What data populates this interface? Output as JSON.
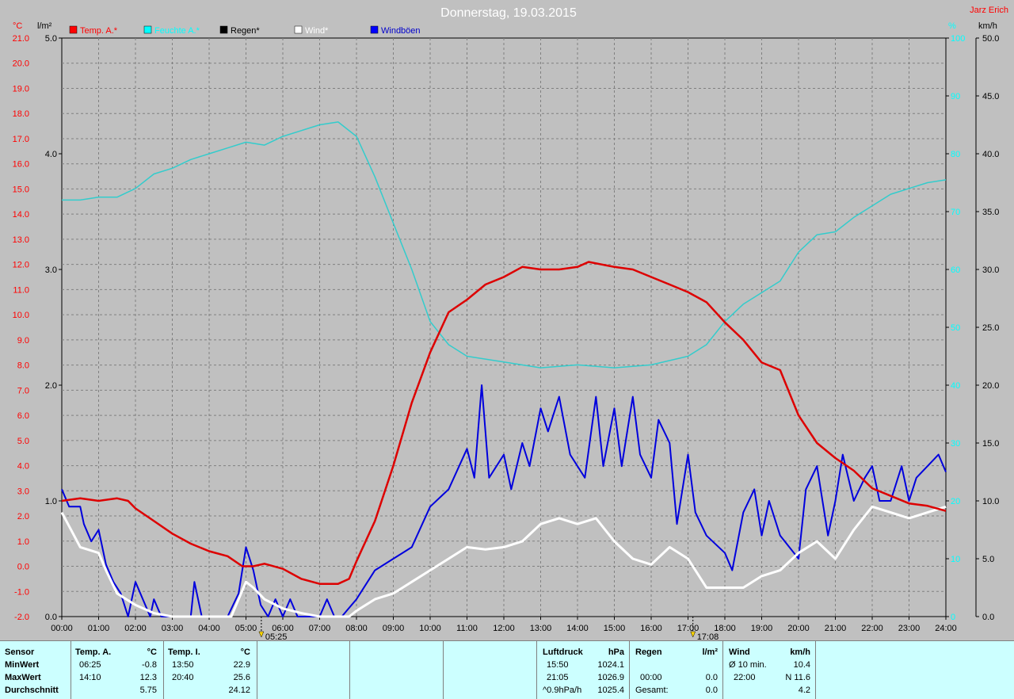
{
  "header": {
    "title": "Donnerstag, 19.03.2015",
    "owner": "Jarz Erich"
  },
  "axes": {
    "left_temp_unit": "°C",
    "left_rain_unit": "l/m²",
    "right_hum_unit": "%",
    "right_wind_unit": "km/h",
    "temp_ticks": [
      "21.0",
      "20.0",
      "19.0",
      "18.0",
      "17.0",
      "16.0",
      "15.0",
      "14.0",
      "13.0",
      "12.0",
      "11.0",
      "10.0",
      "9.0",
      "8.0",
      "7.0",
      "6.0",
      "5.0",
      "4.0",
      "3.0",
      "2.0",
      "1.0",
      "0.0",
      "-1.0",
      "-2.0"
    ],
    "rain_ticks": [
      "5.0",
      "4.0",
      "3.0",
      "2.0",
      "1.0",
      "0.0"
    ],
    "hum_ticks": [
      "100",
      "90",
      "80",
      "70",
      "60",
      "50",
      "40",
      "30",
      "20",
      "10",
      "0"
    ],
    "wind_ticks": [
      "50.0",
      "45.0",
      "40.0",
      "35.0",
      "30.0",
      "25.0",
      "20.0",
      "15.0",
      "10.0",
      "5.0",
      "0.0"
    ],
    "time_ticks": [
      "00:00",
      "01:00",
      "02:00",
      "03:00",
      "04:00",
      "05:00",
      "06:00",
      "07:00",
      "08:00",
      "09:00",
      "10:00",
      "11:00",
      "12:00",
      "13:00",
      "14:00",
      "15:00",
      "16:00",
      "17:00",
      "18:00",
      "19:00",
      "20:00",
      "21:00",
      "22:00",
      "23:00",
      "24:00"
    ],
    "sunrise": "05:25",
    "sunset": "17:08"
  },
  "legend": [
    {
      "label": "Temp. A.*",
      "color": "#ff0000"
    },
    {
      "label": "Feuchte A.*",
      "color": "#00ffff"
    },
    {
      "label": "Regen*",
      "color": "#000000"
    },
    {
      "label": "Wind*",
      "color": "#ffffff"
    },
    {
      "label": "Windböen",
      "color": "#0000ff"
    }
  ],
  "colors": {
    "temp": "#dd0000",
    "hum": "#33cccc",
    "wind": "#ffffff",
    "gust": "#0000dd",
    "temp_axis": "#ff0000",
    "hum_axis": "#00ffff",
    "grid": "#808080"
  },
  "chart_data": {
    "type": "line",
    "title": "Donnerstag, 19.03.2015",
    "x_unit": "hours",
    "xlim": [
      0,
      24
    ],
    "ylim_temp": [
      -2,
      21
    ],
    "ylim_rain": [
      0,
      5
    ],
    "ylim_hum": [
      0,
      100
    ],
    "ylim_wind": [
      0,
      50
    ],
    "series": [
      {
        "name": "Temp. A.*",
        "axis": "temp",
        "points": [
          [
            0,
            2.6
          ],
          [
            0.5,
            2.7
          ],
          [
            1,
            2.6
          ],
          [
            1.5,
            2.7
          ],
          [
            1.8,
            2.6
          ],
          [
            2,
            2.3
          ],
          [
            2.5,
            1.8
          ],
          [
            3,
            1.3
          ],
          [
            3.5,
            0.9
          ],
          [
            4,
            0.6
          ],
          [
            4.5,
            0.4
          ],
          [
            4.9,
            0.0
          ],
          [
            5.2,
            0.0
          ],
          [
            5.5,
            0.1
          ],
          [
            6,
            -0.1
          ],
          [
            6.5,
            -0.5
          ],
          [
            7,
            -0.7
          ],
          [
            7.5,
            -0.7
          ],
          [
            7.8,
            -0.5
          ],
          [
            8,
            0.2
          ],
          [
            8.5,
            1.8
          ],
          [
            9,
            4.0
          ],
          [
            9.5,
            6.5
          ],
          [
            10,
            8.5
          ],
          [
            10.5,
            10.1
          ],
          [
            11,
            10.6
          ],
          [
            11.5,
            11.2
          ],
          [
            12,
            11.5
          ],
          [
            12.5,
            11.9
          ],
          [
            13,
            11.8
          ],
          [
            13.5,
            11.8
          ],
          [
            14,
            11.9
          ],
          [
            14.3,
            12.1
          ],
          [
            15,
            11.9
          ],
          [
            15.5,
            11.8
          ],
          [
            16,
            11.5
          ],
          [
            16.5,
            11.2
          ],
          [
            17,
            10.9
          ],
          [
            17.5,
            10.5
          ],
          [
            18,
            9.7
          ],
          [
            18.5,
            9.0
          ],
          [
            19,
            8.1
          ],
          [
            19.5,
            7.8
          ],
          [
            20,
            6.0
          ],
          [
            20.5,
            4.9
          ],
          [
            21,
            4.3
          ],
          [
            21.5,
            3.8
          ],
          [
            22,
            3.1
          ],
          [
            22.5,
            2.8
          ],
          [
            23,
            2.5
          ],
          [
            23.5,
            2.4
          ],
          [
            24,
            2.2
          ]
        ]
      },
      {
        "name": "Feuchte A.*",
        "axis": "hum",
        "points": [
          [
            0,
            72
          ],
          [
            0.5,
            72
          ],
          [
            1,
            72.5
          ],
          [
            1.5,
            72.5
          ],
          [
            2,
            74
          ],
          [
            2.5,
            76.5
          ],
          [
            3,
            77.5
          ],
          [
            3.5,
            79
          ],
          [
            4,
            80
          ],
          [
            4.5,
            81
          ],
          [
            5,
            82
          ],
          [
            5.5,
            81.5
          ],
          [
            6,
            83
          ],
          [
            6.5,
            84
          ],
          [
            7,
            85
          ],
          [
            7.5,
            85.5
          ],
          [
            8,
            83
          ],
          [
            8.5,
            76
          ],
          [
            9,
            68
          ],
          [
            9.5,
            60
          ],
          [
            10,
            51
          ],
          [
            10.5,
            47
          ],
          [
            11,
            45
          ],
          [
            12,
            44
          ],
          [
            13,
            43
          ],
          [
            14,
            43.5
          ],
          [
            15,
            43
          ],
          [
            16,
            43.5
          ],
          [
            17,
            45
          ],
          [
            17.5,
            47
          ],
          [
            18,
            51
          ],
          [
            18.5,
            54
          ],
          [
            19,
            56
          ],
          [
            19.5,
            58
          ],
          [
            20,
            63
          ],
          [
            20.5,
            66
          ],
          [
            21,
            66.5
          ],
          [
            21.5,
            69
          ],
          [
            22,
            71
          ],
          [
            22.5,
            73
          ],
          [
            23,
            74
          ],
          [
            23.5,
            75
          ],
          [
            24,
            75.5
          ]
        ]
      },
      {
        "name": "Wind*",
        "axis": "wind",
        "points": [
          [
            0,
            9
          ],
          [
            0.5,
            6
          ],
          [
            1,
            5.5
          ],
          [
            1.2,
            4
          ],
          [
            1.5,
            2
          ],
          [
            2,
            1
          ],
          [
            2.5,
            0.3
          ],
          [
            3,
            0
          ],
          [
            4,
            0
          ],
          [
            4.6,
            0
          ],
          [
            5,
            3
          ],
          [
            5.2,
            2.5
          ],
          [
            5.5,
            1.5
          ],
          [
            6,
            0.7
          ],
          [
            6.5,
            0.3
          ],
          [
            7,
            0
          ],
          [
            7.8,
            0
          ],
          [
            8,
            0.5
          ],
          [
            8.5,
            1.5
          ],
          [
            9,
            2
          ],
          [
            9.5,
            3
          ],
          [
            10,
            4
          ],
          [
            10.5,
            5
          ],
          [
            11,
            6
          ],
          [
            11.5,
            5.8
          ],
          [
            12,
            6
          ],
          [
            12.5,
            6.5
          ],
          [
            13,
            8
          ],
          [
            13.5,
            8.5
          ],
          [
            14,
            8
          ],
          [
            14.5,
            8.5
          ],
          [
            15,
            6.5
          ],
          [
            15.5,
            5
          ],
          [
            16,
            4.5
          ],
          [
            16.5,
            6
          ],
          [
            17,
            5
          ],
          [
            17.5,
            2.5
          ],
          [
            18,
            2.5
          ],
          [
            18.5,
            2.5
          ],
          [
            19,
            3.5
          ],
          [
            19.5,
            4
          ],
          [
            20,
            5.5
          ],
          [
            20.5,
            6.5
          ],
          [
            21,
            5
          ],
          [
            21.5,
            7.5
          ],
          [
            22,
            9.5
          ],
          [
            22.5,
            9
          ],
          [
            23,
            8.5
          ],
          [
            23.5,
            9
          ],
          [
            24,
            9.5
          ]
        ]
      },
      {
        "name": "Windböen",
        "axis": "wind",
        "points": [
          [
            0,
            11
          ],
          [
            0.2,
            9.5
          ],
          [
            0.5,
            9.5
          ],
          [
            0.6,
            8
          ],
          [
            0.8,
            6.5
          ],
          [
            1,
            7.5
          ],
          [
            1.2,
            4.5
          ],
          [
            1.4,
            3
          ],
          [
            1.6,
            2
          ],
          [
            1.8,
            0
          ],
          [
            2,
            3
          ],
          [
            2.2,
            1.5
          ],
          [
            2.4,
            0
          ],
          [
            2.5,
            1.5
          ],
          [
            2.7,
            0
          ],
          [
            3,
            0
          ],
          [
            3.5,
            0
          ],
          [
            3.6,
            3
          ],
          [
            3.8,
            0
          ],
          [
            4,
            0
          ],
          [
            4.5,
            0
          ],
          [
            4.8,
            2
          ],
          [
            5,
            6
          ],
          [
            5.2,
            4
          ],
          [
            5.4,
            1
          ],
          [
            5.6,
            0
          ],
          [
            5.8,
            1.5
          ],
          [
            6,
            0
          ],
          [
            6.2,
            1.5
          ],
          [
            6.4,
            0
          ],
          [
            7,
            0
          ],
          [
            7.2,
            1.5
          ],
          [
            7.4,
            0
          ],
          [
            7.6,
            0
          ],
          [
            8,
            1.5
          ],
          [
            8.5,
            4
          ],
          [
            9,
            5
          ],
          [
            9.5,
            6
          ],
          [
            10,
            9.5
          ],
          [
            10.5,
            11
          ],
          [
            11,
            14.5
          ],
          [
            11.2,
            12
          ],
          [
            11.4,
            20
          ],
          [
            11.6,
            12
          ],
          [
            12,
            14
          ],
          [
            12.2,
            11
          ],
          [
            12.5,
            15
          ],
          [
            12.7,
            13
          ],
          [
            13,
            18
          ],
          [
            13.2,
            16
          ],
          [
            13.5,
            19
          ],
          [
            13.8,
            14
          ],
          [
            14,
            13
          ],
          [
            14.2,
            12
          ],
          [
            14.5,
            19
          ],
          [
            14.7,
            13
          ],
          [
            15,
            18
          ],
          [
            15.2,
            13
          ],
          [
            15.5,
            19
          ],
          [
            15.7,
            14
          ],
          [
            16,
            12
          ],
          [
            16.2,
            17
          ],
          [
            16.5,
            15
          ],
          [
            16.7,
            8
          ],
          [
            17,
            14
          ],
          [
            17.2,
            9
          ],
          [
            17.5,
            7
          ],
          [
            18,
            5.5
          ],
          [
            18.2,
            4
          ],
          [
            18.5,
            9
          ],
          [
            18.8,
            11
          ],
          [
            19,
            7
          ],
          [
            19.2,
            10
          ],
          [
            19.5,
            7
          ],
          [
            20,
            5
          ],
          [
            20.2,
            11
          ],
          [
            20.5,
            13
          ],
          [
            20.8,
            7
          ],
          [
            21,
            10
          ],
          [
            21.2,
            14
          ],
          [
            21.5,
            10
          ],
          [
            21.8,
            12
          ],
          [
            22,
            13
          ],
          [
            22.2,
            10
          ],
          [
            22.5,
            10
          ],
          [
            22.8,
            13
          ],
          [
            23,
            10
          ],
          [
            23.2,
            12
          ],
          [
            23.5,
            13
          ],
          [
            23.8,
            14
          ],
          [
            24,
            12.5
          ]
        ]
      }
    ]
  },
  "stats": {
    "sensor": {
      "label": "Sensor",
      "rows": [
        "MinWert",
        "MaxWert",
        "Durchschnitt"
      ]
    },
    "temp_a": {
      "label": "Temp. A.",
      "unit": "°C",
      "min_time": "06:25",
      "min": "-0.8",
      "max_time": "14:10",
      "max": "12.3",
      "avg": "5.75"
    },
    "temp_i": {
      "label": "Temp. I.",
      "unit": "°C",
      "min_time": "13:50",
      "min": "22.9",
      "max_time": "20:40",
      "max": "25.6",
      "avg": "24.12"
    },
    "pressure": {
      "label": "Luftdruck",
      "unit": "hPa",
      "min_time": "15:50",
      "min": "1024.1",
      "max_time": "21:05",
      "max": "1026.9",
      "trend": "^0.9hPa/h",
      "avg": "1025.4"
    },
    "rain": {
      "label": "Regen",
      "unit": "l/m²",
      "max_time": "00:00",
      "max": "0.0",
      "total_label": "Gesamt:",
      "total": "0.0"
    },
    "wind": {
      "label": "Wind",
      "unit": "km/h",
      "min_label": "Ø 10 min.",
      "min": "10.4",
      "max_time": "22:00",
      "max": "N 11.6",
      "avg": "4.2"
    }
  }
}
